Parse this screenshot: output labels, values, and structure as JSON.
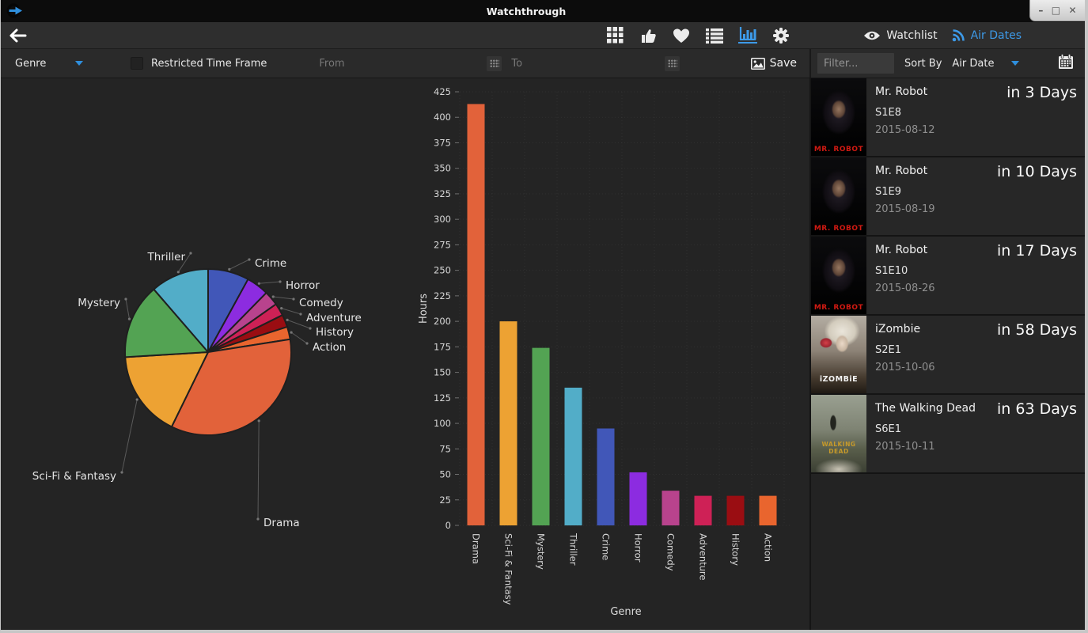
{
  "window": {
    "title": "Watchthrough",
    "controls": {
      "minimize": "–",
      "maximize": "□",
      "close": "✕"
    }
  },
  "navbar": {
    "watchlist_label": "Watchlist",
    "airdates_label": "Air Dates"
  },
  "filterbar": {
    "genre_label": "Genre",
    "restricted_label": "Restricted Time Frame",
    "from_placeholder": "From",
    "to_placeholder": "To",
    "save_label": "Save"
  },
  "panelbar": {
    "filter_placeholder": "Filter...",
    "sortby_label": "Sort By",
    "sort_value": "Air Date"
  },
  "accent_color": "#3d9ae8",
  "genre_colors": {
    "Drama": "#e2623a",
    "Sci-Fi & Fantasy": "#eda233",
    "Mystery": "#53a353",
    "Thriller": "#52adc8",
    "Crime": "#4157b8",
    "Horror": "#8c2ce0",
    "Comedy": "#b8438d",
    "Adventure": "#ce2156",
    "History": "#9a0d12",
    "Action": "#e9652e"
  },
  "chart_data": [
    {
      "type": "pie",
      "title": "",
      "categories": [
        "Crime",
        "Horror",
        "Comedy",
        "Adventure",
        "History",
        "Action",
        "Drama",
        "Sci-Fi & Fantasy",
        "Mystery",
        "Thriller"
      ],
      "values": [
        95,
        52,
        34,
        29,
        29,
        29,
        413,
        200,
        174,
        135
      ],
      "legend_position": "outside-labels",
      "start_angle_deg": 0
    },
    {
      "type": "bar",
      "categories": [
        "Drama",
        "Sci-Fi & Fantasy",
        "Mystery",
        "Thriller",
        "Crime",
        "Horror",
        "Comedy",
        "Adventure",
        "History",
        "Action"
      ],
      "values": [
        413,
        200,
        174,
        135,
        95,
        52,
        34,
        29,
        29,
        29
      ],
      "xlabel": "Genre",
      "ylabel": "Hours",
      "ylim": [
        0,
        425
      ],
      "ytick_step": 25,
      "grid": true
    }
  ],
  "episodes": [
    {
      "title": "Mr. Robot",
      "episode": "S1E8",
      "date": "2015-08-12",
      "countdown": "in 3 Days",
      "poster_caption": "MR. ROBOT",
      "poster_style": "mrrobot"
    },
    {
      "title": "Mr. Robot",
      "episode": "S1E9",
      "date": "2015-08-19",
      "countdown": "in 10 Days",
      "poster_caption": "MR. ROBOT",
      "poster_style": "mrrobot"
    },
    {
      "title": "Mr. Robot",
      "episode": "S1E10",
      "date": "2015-08-26",
      "countdown": "in 17 Days",
      "poster_caption": "MR. ROBOT",
      "poster_style": "mrrobot"
    },
    {
      "title": "iZombie",
      "episode": "S2E1",
      "date": "2015-10-06",
      "countdown": "in 58 Days",
      "poster_caption": "iZOMBiE",
      "poster_style": "izombie"
    },
    {
      "title": "The Walking Dead",
      "episode": "S6E1",
      "date": "2015-10-11",
      "countdown": "in 63 Days",
      "poster_caption": "WALKING DEAD",
      "poster_style": "twd"
    }
  ]
}
